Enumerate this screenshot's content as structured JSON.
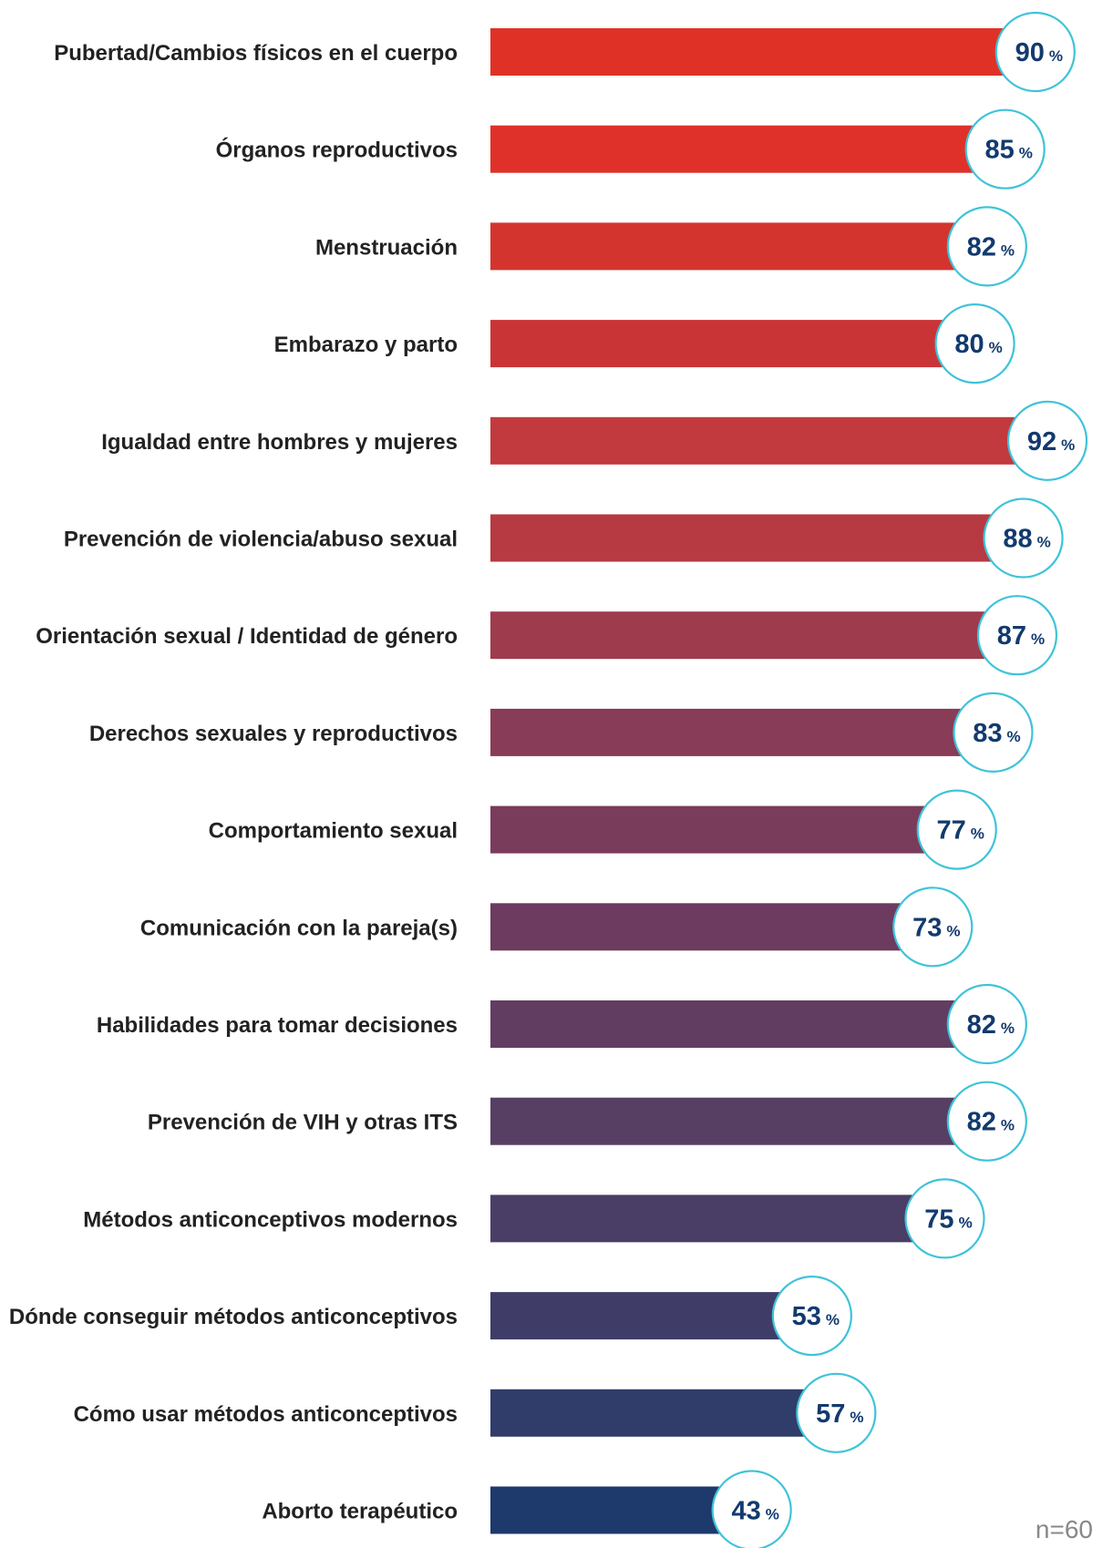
{
  "chart_data": {
    "type": "bar",
    "orientation": "horizontal",
    "categories": [
      "Pubertad/Cambios físicos en el cuerpo",
      "Órganos reproductivos",
      "Menstruación",
      "Embarazo y parto",
      "Igualdad entre hombres y mujeres",
      "Prevención de violencia/abuso sexual",
      "Orientación sexual / Identidad de género",
      "Derechos sexuales y reproductivos",
      "Comportamiento sexual",
      "Comunicación con la pareja(s)",
      "Habilidades para tomar decisiones",
      "Prevención de VIH y otras ITS",
      "Métodos anticonceptivos modernos",
      "Dónde conseguir métodos anticonceptivos",
      "Cómo usar métodos anticonceptivos",
      "Aborto terapéutico"
    ],
    "values": [
      90,
      85,
      82,
      80,
      92,
      88,
      87,
      83,
      77,
      73,
      82,
      82,
      75,
      53,
      57,
      43
    ],
    "unit": "%",
    "colors": [
      "#e03127",
      "#df3129",
      "#d3352e",
      "#c93537",
      "#c23a3d",
      "#b73a42",
      "#9e3b4d",
      "#883c57",
      "#7a3c5b",
      "#6c3b5f",
      "#623d62",
      "#573f64",
      "#4a3e66",
      "#3f3d68",
      "#303c6a",
      "#1e3a6c"
    ],
    "note": "n=60"
  }
}
